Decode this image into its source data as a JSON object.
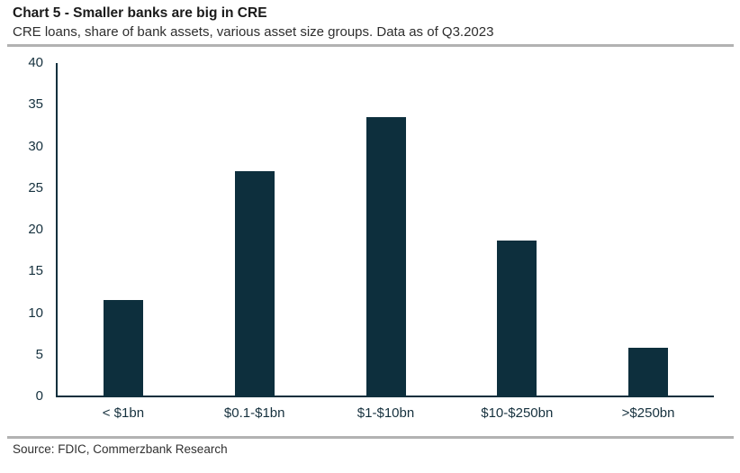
{
  "header": {
    "title": "Chart 5 - Smaller banks are big in CRE",
    "subtitle": "CRE loans, share of bank assets, various asset size groups. Data as of Q3.2023"
  },
  "footer": {
    "source": "Source: FDIC, Commerzbank Research"
  },
  "chart_data": {
    "type": "bar",
    "title": "Chart 5 - Smaller banks are big in CRE",
    "subtitle": "CRE loans, share of bank assets, various asset size groups. Data as of Q3.2023",
    "categories": [
      "< $1bn",
      "$0.1-$1bn",
      "$1-$10bn",
      "$10-$250bn",
      ">$250bn"
    ],
    "values": [
      11.5,
      27.0,
      33.5,
      18.6,
      5.8
    ],
    "xlabel": "",
    "ylabel": "",
    "ylim": [
      0,
      40
    ],
    "yticks": [
      0,
      5,
      10,
      15,
      20,
      25,
      30,
      35,
      40
    ],
    "grid": false,
    "legend": false,
    "bar_color": "#0d2f3d",
    "axis_color": "#0d2f3d",
    "tick_text_color": "#16313e",
    "source": "Source: FDIC, Commerzbank Research"
  }
}
